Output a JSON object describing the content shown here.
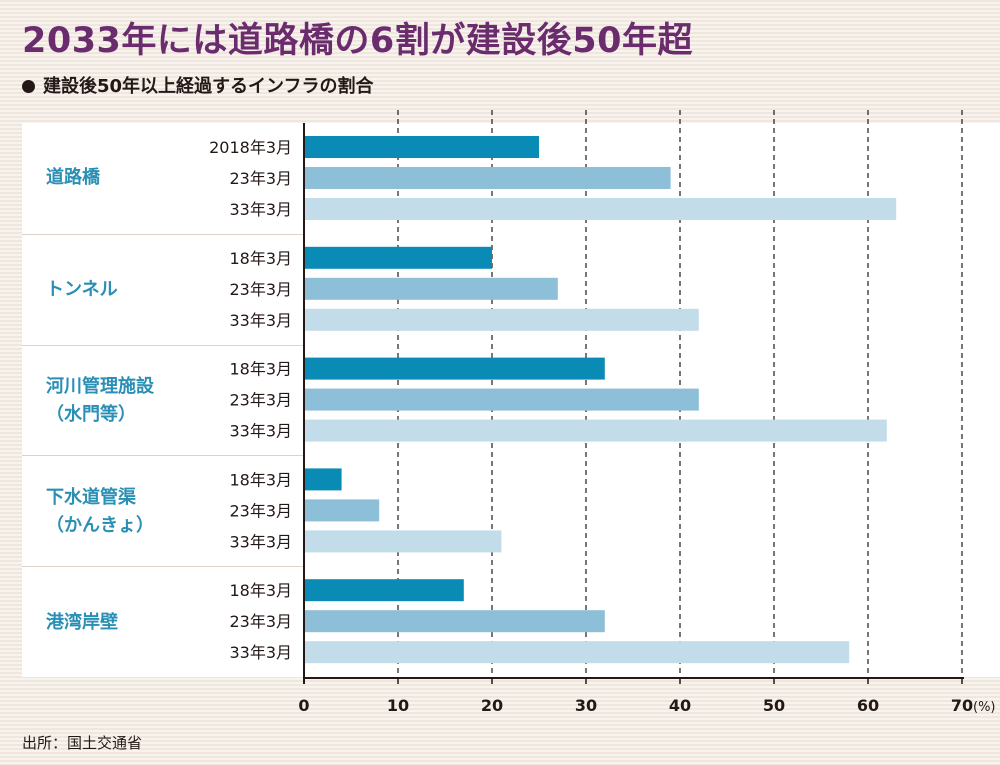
{
  "title": "2033年には道路橋の6割が建設後50年超",
  "subtitle": "建設後50年以上経過するインフラの割合",
  "source": "出所：国土交通省",
  "colors": {
    "year2018": "#0a8bb6",
    "year2023": "#8ebfd8",
    "year2033": "#c2dcea",
    "label": "#2a8fb5",
    "title": "#6b2c6e"
  },
  "chart_data": {
    "type": "bar",
    "orientation": "horizontal",
    "unit": "(%)",
    "xlim": [
      0,
      70
    ],
    "xticks": [
      "0",
      "10",
      "20",
      "30",
      "40",
      "50",
      "60",
      "70"
    ],
    "grid": "vertical dashed",
    "groups": [
      {
        "name": "道路橋",
        "name_lines": [
          "道路橋"
        ],
        "bars": [
          {
            "label": "2018年3月",
            "value": 25
          },
          {
            "label": "23年3月",
            "value": 39
          },
          {
            "label": "33年3月",
            "value": 63
          }
        ]
      },
      {
        "name": "トンネル",
        "name_lines": [
          "トンネル"
        ],
        "bars": [
          {
            "label": "18年3月",
            "value": 20
          },
          {
            "label": "23年3月",
            "value": 27
          },
          {
            "label": "33年3月",
            "value": 42
          }
        ]
      },
      {
        "name": "河川管理施設（水門等）",
        "name_lines": [
          "河川管理施設",
          "（水門等）"
        ],
        "bars": [
          {
            "label": "18年3月",
            "value": 32
          },
          {
            "label": "23年3月",
            "value": 42
          },
          {
            "label": "33年3月",
            "value": 62
          }
        ]
      },
      {
        "name": "下水道管渠（かんきょ）",
        "name_lines": [
          "下水道管渠",
          "（かんきょ）"
        ],
        "bars": [
          {
            "label": "18年3月",
            "value": 4
          },
          {
            "label": "23年3月",
            "value": 8
          },
          {
            "label": "33年3月",
            "value": 21
          }
        ]
      },
      {
        "name": "港湾岸壁",
        "name_lines": [
          "港湾岸壁"
        ],
        "bars": [
          {
            "label": "18年3月",
            "value": 17
          },
          {
            "label": "23年3月",
            "value": 32
          },
          {
            "label": "33年3月",
            "value": 58
          }
        ]
      }
    ]
  }
}
